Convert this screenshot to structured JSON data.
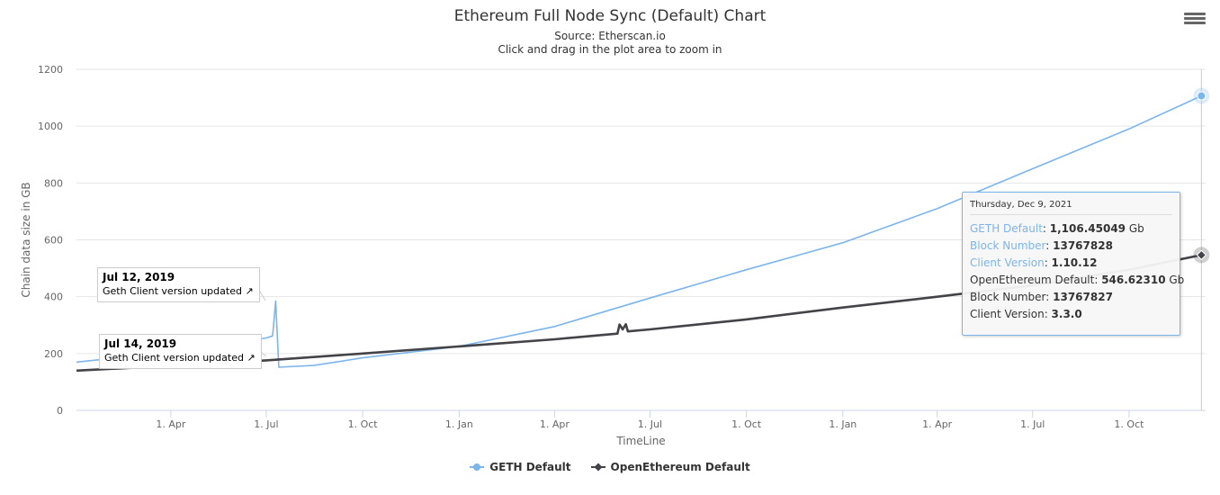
{
  "header": {
    "title": "Ethereum Full Node Sync (Default) Chart",
    "source": "Source: Etherscan.io",
    "hint": "Click and drag in the plot area to zoom in",
    "menu_icon": "hamburger-menu-icon"
  },
  "colors": {
    "geth": "#7cb5ec",
    "openethereum": "#434348",
    "grid": "#e6e6e6",
    "axis": "#ccd6eb"
  },
  "chart_data": {
    "type": "line",
    "title": "Ethereum Full Node Sync (Default) Chart",
    "xlabel": "TimeLine",
    "ylabel": "Chain data size in GB",
    "ylim": [
      0,
      1200
    ],
    "xlim": [
      "2019-01-01",
      "2021-12-13"
    ],
    "yticks": [
      0,
      200,
      400,
      600,
      800,
      1000,
      1200
    ],
    "xtick_labels": [
      "1. Apr",
      "1. Jul",
      "1. Oct",
      "1. Jan",
      "1. Apr",
      "1. Jul",
      "1. Oct",
      "1. Jan",
      "1. Apr",
      "1. Jul",
      "1. Oct"
    ],
    "xtick_dates": [
      "2019-04-01",
      "2019-07-01",
      "2019-10-01",
      "2020-01-01",
      "2020-04-01",
      "2020-07-01",
      "2020-10-01",
      "2021-01-01",
      "2021-04-01",
      "2021-07-01",
      "2021-10-01"
    ],
    "grid": true,
    "legend_position": "bottom-center",
    "series": [
      {
        "name": "GETH Default",
        "marker": "circle",
        "points": [
          [
            "2019-01-01",
            170
          ],
          [
            "2019-03-01",
            192
          ],
          [
            "2019-05-01",
            220
          ],
          [
            "2019-07-01",
            255
          ],
          [
            "2019-07-07",
            262
          ],
          [
            "2019-07-08",
            300
          ],
          [
            "2019-07-10",
            385
          ],
          [
            "2019-07-12",
            230
          ],
          [
            "2019-07-13",
            152
          ],
          [
            "2019-08-15",
            158
          ],
          [
            "2019-10-01",
            185
          ],
          [
            "2020-01-01",
            225
          ],
          [
            "2020-04-01",
            295
          ],
          [
            "2020-07-01",
            395
          ],
          [
            "2020-10-01",
            495
          ],
          [
            "2021-01-01",
            590
          ],
          [
            "2021-04-01",
            710
          ],
          [
            "2021-07-01",
            850
          ],
          [
            "2021-10-01",
            990
          ],
          [
            "2021-12-09",
            1106.45
          ]
        ]
      },
      {
        "name": "OpenEthereum Default",
        "marker": "diamond",
        "points": [
          [
            "2019-01-01",
            140
          ],
          [
            "2019-04-01",
            157
          ],
          [
            "2019-07-01",
            176
          ],
          [
            "2019-10-01",
            200
          ],
          [
            "2020-01-01",
            225
          ],
          [
            "2020-04-01",
            250
          ],
          [
            "2020-05-31",
            270
          ],
          [
            "2020-06-02",
            302
          ],
          [
            "2020-06-05",
            285
          ],
          [
            "2020-06-08",
            303
          ],
          [
            "2020-06-10",
            278
          ],
          [
            "2020-07-01",
            285
          ],
          [
            "2020-10-01",
            320
          ],
          [
            "2021-01-01",
            362
          ],
          [
            "2021-04-01",
            400
          ],
          [
            "2021-07-01",
            440
          ],
          [
            "2021-10-01",
            495
          ],
          [
            "2021-12-09",
            546.62
          ]
        ]
      }
    ],
    "annotations": [
      {
        "date": "Jul 12, 2019",
        "text": "Geth Client version updated"
      },
      {
        "date": "Jul 14, 2019",
        "text": "Geth Client version updated"
      }
    ]
  },
  "tooltip": {
    "date": "Thursday, Dec 9, 2021",
    "geth": [
      {
        "key": "GETH Default",
        "value": "1,106.45049",
        "suffix": " Gb"
      },
      {
        "key": "Block Number",
        "value": "13767828",
        "suffix": ""
      },
      {
        "key": "Client Version",
        "value": "1.10.12",
        "suffix": ""
      }
    ],
    "openethereum": [
      {
        "key": "OpenEthereum Default",
        "value": "546.62310",
        "suffix": " Gb"
      },
      {
        "key": "Block Number",
        "value": "13767827",
        "suffix": ""
      },
      {
        "key": "Client Version",
        "value": "3.3.0",
        "suffix": ""
      }
    ]
  },
  "legend": {
    "items": [
      {
        "label": "GETH Default",
        "icon": "circle"
      },
      {
        "label": "OpenEthereum Default",
        "icon": "diamond"
      }
    ]
  }
}
